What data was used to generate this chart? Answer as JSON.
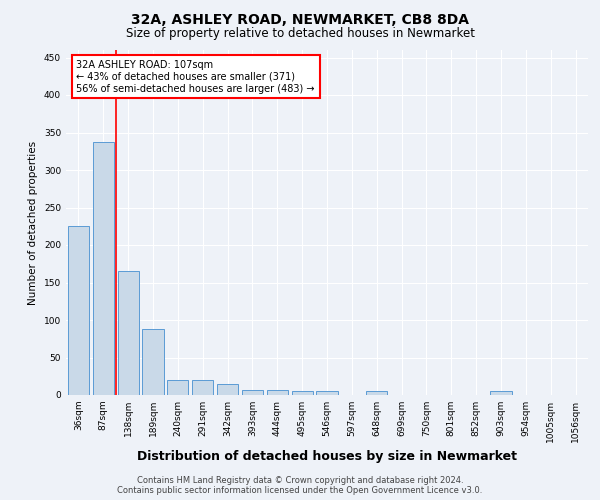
{
  "title": "32A, ASHLEY ROAD, NEWMARKET, CB8 8DA",
  "subtitle": "Size of property relative to detached houses in Newmarket",
  "xlabel": "Distribution of detached houses by size in Newmarket",
  "ylabel": "Number of detached properties",
  "categories": [
    "36sqm",
    "87sqm",
    "138sqm",
    "189sqm",
    "240sqm",
    "291sqm",
    "342sqm",
    "393sqm",
    "444sqm",
    "495sqm",
    "546sqm",
    "597sqm",
    "648sqm",
    "699sqm",
    "750sqm",
    "801sqm",
    "852sqm",
    "903sqm",
    "954sqm",
    "1005sqm",
    "1056sqm"
  ],
  "values": [
    225,
    337,
    165,
    88,
    20,
    20,
    15,
    7,
    7,
    5,
    5,
    0,
    5,
    0,
    0,
    0,
    0,
    5,
    0,
    0,
    0
  ],
  "bar_color": "#c9d9e8",
  "bar_edge_color": "#5b9bd5",
  "red_line_x": 1.5,
  "annotation_text": "32A ASHLEY ROAD: 107sqm\n← 43% of detached houses are smaller (371)\n56% of semi-detached houses are larger (483) →",
  "annotation_box_color": "white",
  "annotation_box_edge_color": "red",
  "red_line_color": "red",
  "ylim": [
    0,
    460
  ],
  "yticks": [
    0,
    50,
    100,
    150,
    200,
    250,
    300,
    350,
    400,
    450
  ],
  "footer_line1": "Contains HM Land Registry data © Crown copyright and database right 2024.",
  "footer_line2": "Contains public sector information licensed under the Open Government Licence v3.0.",
  "background_color": "#eef2f8",
  "grid_color": "#ffffff",
  "title_fontsize": 10,
  "subtitle_fontsize": 8.5,
  "xlabel_fontsize": 9,
  "ylabel_fontsize": 7.5,
  "tick_fontsize": 6.5,
  "annotation_fontsize": 7,
  "footer_fontsize": 6
}
